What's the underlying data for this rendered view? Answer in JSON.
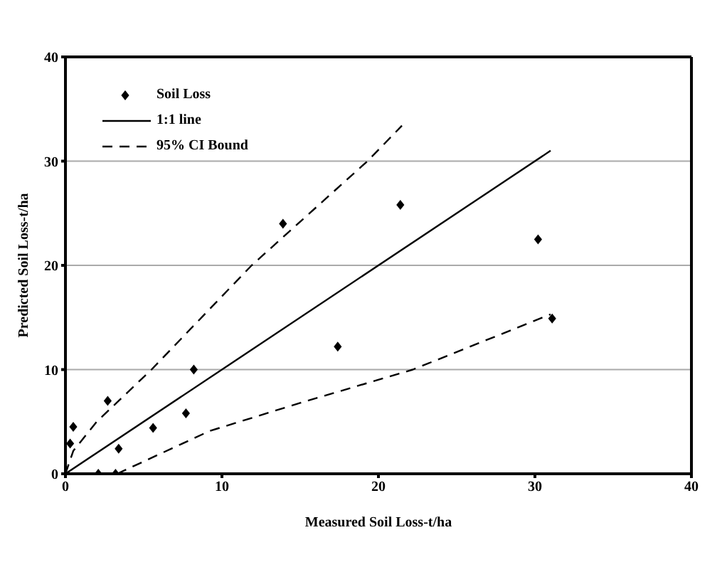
{
  "chart_data": {
    "type": "scatter",
    "xlabel": "Measured Soil Loss-t/ha",
    "ylabel": "Predicted Soil Loss-t/ha",
    "xlim": [
      0,
      40
    ],
    "xticks": [
      0,
      10,
      20,
      30,
      40
    ],
    "ylim": [
      0,
      40
    ],
    "yticks": [
      0,
      10,
      20,
      30,
      40
    ],
    "grid": "y",
    "legend": "top left",
    "marker": "diamond",
    "series": [
      {
        "name": "Soil Loss",
        "color": "#000000",
        "x": [
          0.3,
          0.5,
          2.7,
          3.4,
          2.1,
          3.2,
          5.6,
          7.7,
          8.2,
          13.9,
          17.4,
          21.4,
          30.2,
          31.1
        ],
        "values": [
          2.9,
          4.5,
          7.0,
          2.4,
          0,
          0,
          4.4,
          5.8,
          10,
          24,
          12.2,
          25.8,
          22.5,
          14.9
        ]
      },
      {
        "name": "1:1 line",
        "type": "line",
        "color": "#000000",
        "line_style": "solid",
        "marker": "none",
        "x": [
          0,
          31
        ],
        "values": [
          0,
          31
        ]
      },
      {
        "name": "95% CI Bound",
        "type": "line",
        "color": "#000000",
        "line_style": "dashed",
        "marker": "none",
        "x": [
          0,
          0.5,
          2,
          5.5,
          11.9,
          19.3,
          21.5
        ],
        "values": [
          0,
          2.2,
          5,
          10,
          20,
          30,
          33.4
        ]
      },
      {
        "type": "line",
        "color": "#000000",
        "line_style": "dashed",
        "marker": "none",
        "x": [
          3.3,
          9.2,
          15,
          22.2,
          31
        ],
        "values": [
          0,
          4.1,
          6.8,
          10,
          15.3
        ]
      }
    ]
  }
}
